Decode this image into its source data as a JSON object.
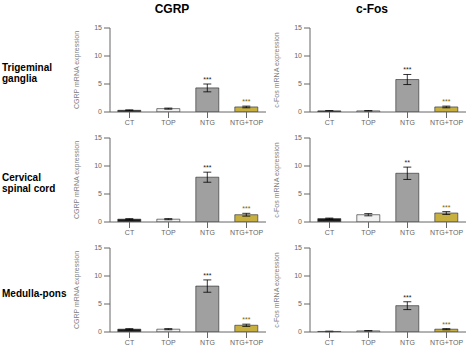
{
  "chart_data": [
    {
      "type": "bar",
      "title": "CGRP",
      "subtitle": "Trigeminal ganglia",
      "categories": [
        "CT",
        "TOP",
        "NTG",
        "NTG+TOP"
      ],
      "values": [
        0.3,
        0.6,
        4.3,
        0.9
      ],
      "errors": [
        0.08,
        0.1,
        0.7,
        0.15
      ],
      "colors": [
        "#1a1a1a",
        "#f2f2f2",
        "#a0a0a0",
        "#c8b040"
      ],
      "edge_color": "#222222",
      "ylim": [
        0,
        15
      ],
      "yticks": [
        0,
        5,
        10,
        15
      ],
      "ylabel": "CGRP mRNA expression",
      "annotations": [
        {
          "category": "NTG",
          "text": "***",
          "color": "#222222"
        },
        {
          "category": "NTG+TOP",
          "text": "***",
          "color": "#7a6800"
        }
      ]
    },
    {
      "type": "bar",
      "title": "c-Fos",
      "categories": [
        "CT",
        "TOP",
        "NTG",
        "NTG+TOP"
      ],
      "values": [
        0.2,
        0.2,
        5.8,
        0.9
      ],
      "errors": [
        0.05,
        0.05,
        0.9,
        0.15
      ],
      "colors": [
        "#1a1a1a",
        "#f2f2f2",
        "#a0a0a0",
        "#c8b040"
      ],
      "edge_color": "#222222",
      "ylim": [
        0,
        15
      ],
      "yticks": [
        0,
        5,
        10,
        15
      ],
      "ylabel": "c-Fos mRNA expression",
      "annotations": [
        {
          "category": "NTG",
          "text": "***",
          "color": "#222222"
        },
        {
          "category": "NTG+TOP",
          "text": "***",
          "color": "#7a6800"
        }
      ]
    },
    {
      "type": "bar",
      "subtitle": "Cervical spinal cord",
      "categories": [
        "CT",
        "TOP",
        "NTG",
        "NTG+TOP"
      ],
      "values": [
        0.5,
        0.5,
        8.0,
        1.3
      ],
      "errors": [
        0.1,
        0.1,
        0.9,
        0.25
      ],
      "colors": [
        "#1a1a1a",
        "#f2f2f2",
        "#a0a0a0",
        "#c8b040"
      ],
      "edge_color": "#222222",
      "ylim": [
        0,
        15
      ],
      "yticks": [
        0,
        5,
        10,
        15
      ],
      "ylabel": "CGRP mRNA expression",
      "annotations": [
        {
          "category": "NTG",
          "text": "***",
          "color": "#222222"
        },
        {
          "category": "NTG+TOP",
          "text": "***",
          "color": "#7a6800"
        }
      ]
    },
    {
      "type": "bar",
      "categories": [
        "CT",
        "TOP",
        "NTG",
        "NTG+TOP"
      ],
      "values": [
        0.6,
        1.3,
        8.7,
        1.6
      ],
      "errors": [
        0.1,
        0.2,
        1.1,
        0.25
      ],
      "colors": [
        "#1a1a1a",
        "#f2f2f2",
        "#a0a0a0",
        "#c8b040"
      ],
      "edge_color": "#222222",
      "ylim": [
        0,
        15
      ],
      "yticks": [
        0,
        5,
        10,
        15
      ],
      "ylabel": "c-Fos mRNA expression",
      "annotations": [
        {
          "category": "NTG",
          "text": "**",
          "color": "#222222"
        },
        {
          "category": "NTG+TOP",
          "text": "***",
          "color": "#7a6800"
        }
      ]
    },
    {
      "type": "bar",
      "subtitle": "Medulla-pons",
      "categories": [
        "CT",
        "TOP",
        "NTG",
        "NTG+TOP"
      ],
      "values": [
        0.5,
        0.5,
        8.2,
        1.2
      ],
      "errors": [
        0.1,
        0.1,
        1.1,
        0.2
      ],
      "colors": [
        "#1a1a1a",
        "#f2f2f2",
        "#a0a0a0",
        "#c8b040"
      ],
      "edge_color": "#222222",
      "ylim": [
        0,
        15
      ],
      "yticks": [
        0,
        5,
        10,
        15
      ],
      "ylabel": "CGRP mRNA expression",
      "annotations": [
        {
          "category": "NTG",
          "text": "***",
          "color": "#222222"
        },
        {
          "category": "NTG+TOP",
          "text": "***",
          "color": "#7a6800"
        }
      ]
    },
    {
      "type": "bar",
      "categories": [
        "CT",
        "TOP",
        "NTG",
        "NTG+TOP"
      ],
      "values": [
        0.1,
        0.2,
        4.7,
        0.5
      ],
      "errors": [
        0.05,
        0.05,
        0.7,
        0.1
      ],
      "colors": [
        "#1a1a1a",
        "#f2f2f2",
        "#a0a0a0",
        "#c8b040"
      ],
      "edge_color": "#222222",
      "ylim": [
        0,
        15
      ],
      "yticks": [
        0,
        5,
        10,
        15
      ],
      "ylabel": "c-Fos mRNA expression",
      "annotations": [
        {
          "category": "NTG",
          "text": "***",
          "color": "#222222"
        },
        {
          "category": "NTG+TOP",
          "text": "***",
          "color": "#7a6800"
        }
      ]
    }
  ]
}
